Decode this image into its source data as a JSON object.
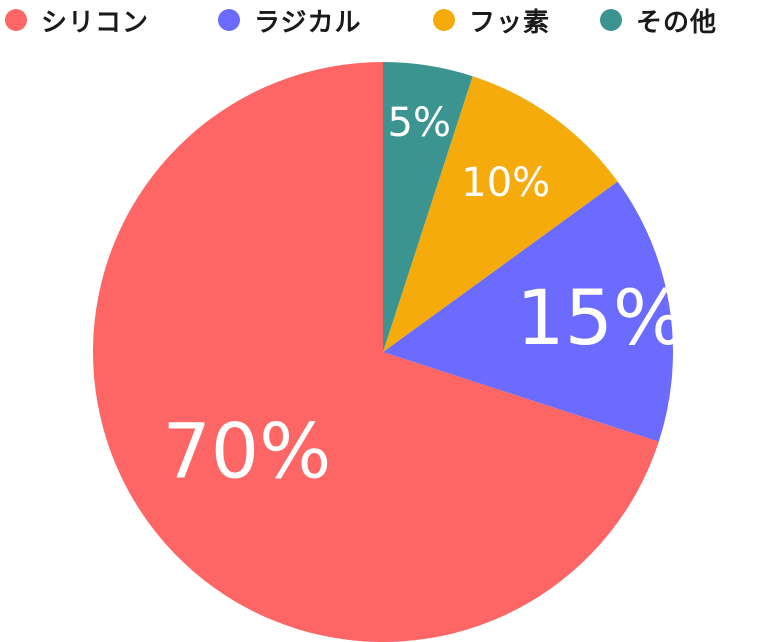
{
  "chart_data": {
    "type": "pie",
    "categories": [
      "シリコン",
      "ラジカル",
      "フッ素",
      "その他"
    ],
    "values": [
      70,
      15,
      10,
      5
    ],
    "labels": [
      "70%",
      "15%",
      "10%",
      "5%"
    ],
    "colors": [
      "#fe6666",
      "#6b6bff",
      "#f5ab0b",
      "#3b9490"
    ],
    "legend_position": "top"
  }
}
